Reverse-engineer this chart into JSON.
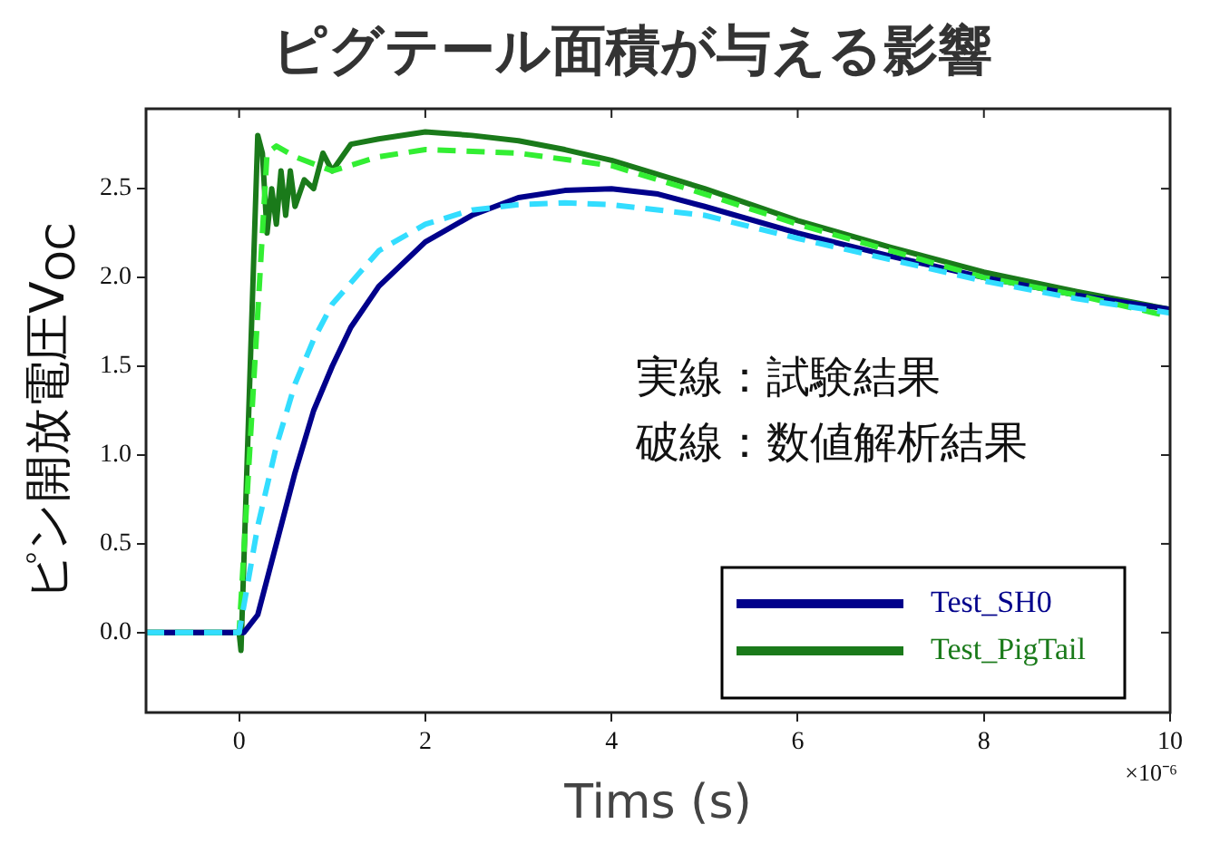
{
  "chart_data": {
    "type": "line",
    "title": "ピグテール面積が与える影響",
    "xlabel": "Tims (s)",
    "ylabel": "ピン開放電圧V$_{OC}$",
    "annotations": [
      "実線：試験結果",
      "破線：数値解析結果",
      "×10⁻⁶"
    ],
    "xlim": [
      -1,
      10
    ],
    "xticks": [
      0,
      2,
      4,
      6,
      8,
      10
    ],
    "ylim": [
      -0.45,
      2.95
    ],
    "yticks": [
      {
        "value": 0,
        "label": "0.0"
      },
      {
        "value": 0.5,
        "label": "0.5"
      },
      {
        "value": 1,
        "label": "1.0"
      },
      {
        "value": 1.5,
        "label": "1.5"
      },
      {
        "value": 2,
        "label": "2.0"
      },
      {
        "value": 2.5,
        "label": "2.5"
      }
    ],
    "grid": false,
    "legend": "bottom right",
    "marker": "none",
    "series": [
      {
        "type": "line",
        "line_style": "dashed",
        "color": "#33ddff",
        "x": [
          -1,
          0,
          0.1,
          0.2,
          0.4,
          0.6,
          0.8,
          1,
          1.5,
          2,
          2.5,
          3,
          3.5,
          4,
          5,
          6,
          7,
          8,
          9,
          10
        ],
        "values": [
          0,
          0,
          0.3,
          0.6,
          1.05,
          1.4,
          1.65,
          1.85,
          2.15,
          2.3,
          2.38,
          2.41,
          2.42,
          2.41,
          2.35,
          2.22,
          2.1,
          1.98,
          1.88,
          1.8
        ]
      },
      {
        "type": "line",
        "line_style": "dashed",
        "color": "#33ee33",
        "x": [
          -1,
          0,
          0.3,
          0.4,
          0.6,
          1,
          1.5,
          2,
          3,
          4,
          5,
          6,
          7,
          8,
          9,
          10
        ],
        "values": [
          0,
          0,
          2.7,
          2.74,
          2.68,
          2.6,
          2.68,
          2.72,
          2.7,
          2.63,
          2.47,
          2.3,
          2.15,
          2.0,
          1.9,
          1.78
        ]
      },
      {
        "type": "line",
        "name": "Test_SH0",
        "line_style": "solid",
        "color": "#00008b",
        "x": [
          -1,
          0,
          0.05,
          0.2,
          0.4,
          0.6,
          0.8,
          1,
          1.2,
          1.5,
          2,
          2.5,
          3,
          3.5,
          4,
          4.5,
          5,
          6,
          7,
          8,
          9,
          10
        ],
        "values": [
          0,
          0,
          0,
          0.1,
          0.5,
          0.9,
          1.25,
          1.5,
          1.72,
          1.95,
          2.2,
          2.35,
          2.45,
          2.49,
          2.5,
          2.47,
          2.4,
          2.25,
          2.12,
          2.0,
          1.9,
          1.82
        ]
      },
      {
        "type": "line",
        "name": "Test_PigTail",
        "line_style": "solid",
        "color": "#1a7a1a",
        "x": [
          -1,
          0,
          0.02,
          0.2,
          0.25,
          0.3,
          0.35,
          0.4,
          0.45,
          0.5,
          0.55,
          0.6,
          0.7,
          0.8,
          0.9,
          1,
          1.2,
          1.5,
          2,
          2.5,
          3,
          3.5,
          4,
          5,
          6,
          7,
          8,
          9,
          10
        ],
        "values": [
          0,
          0,
          -0.1,
          2.8,
          2.7,
          2.25,
          2.5,
          2.3,
          2.6,
          2.35,
          2.6,
          2.4,
          2.55,
          2.5,
          2.7,
          2.6,
          2.75,
          2.78,
          2.82,
          2.8,
          2.77,
          2.72,
          2.66,
          2.5,
          2.32,
          2.17,
          2.03,
          1.92,
          1.82
        ]
      }
    ]
  }
}
